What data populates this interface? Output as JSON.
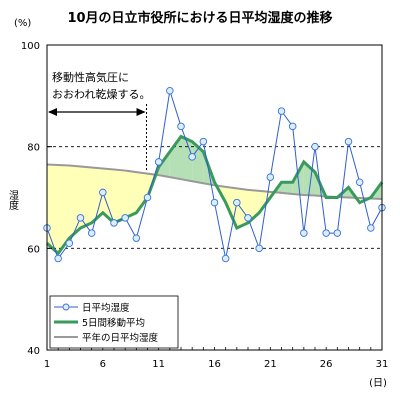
{
  "chart_data": {
    "type": "line",
    "title": "10月の日立市役所における日平均湿度の推移",
    "y_unit": "(%)",
    "y_label": "湿度",
    "x_unit": "(日)",
    "ylim": [
      40,
      100
    ],
    "xlim": [
      1,
      31
    ],
    "y_ticks": [
      40,
      60,
      80,
      100
    ],
    "x_ticks": [
      1,
      6,
      11,
      16,
      21,
      26,
      31
    ],
    "grid": "dashed at 60 and 80",
    "legend_position": "bottom-left",
    "annotation": {
      "text_line1": "移動性高気圧に",
      "text_line2": "おおわれ乾燥する。",
      "from_day": 1,
      "to_day": 10
    },
    "x": [
      1,
      2,
      3,
      4,
      5,
      6,
      7,
      8,
      9,
      10,
      11,
      12,
      13,
      14,
      15,
      16,
      17,
      18,
      19,
      20,
      21,
      22,
      23,
      24,
      25,
      26,
      27,
      28,
      29,
      30,
      31
    ],
    "series": [
      {
        "name": "日平均湿度",
        "color": "#2f5fd0",
        "values": [
          64,
          58,
          61,
          66,
          63,
          71,
          65,
          66,
          62,
          70,
          77,
          91,
          84,
          78,
          81,
          69,
          58,
          69,
          66,
          60,
          74,
          87,
          84,
          63,
          80,
          63,
          63,
          81,
          73,
          64,
          68
        ]
      },
      {
        "name": "5日間移動平均",
        "color": "#3a9a5e",
        "values": [
          61,
          59,
          62,
          64,
          65,
          67,
          65,
          66,
          67,
          70,
          76,
          79,
          82,
          81,
          79,
          73,
          69,
          64,
          65,
          67,
          70,
          73,
          73,
          77,
          75,
          70,
          70,
          72,
          69,
          70,
          73
        ]
      },
      {
        "name": "平年の日平均湿度",
        "color": "#999999",
        "values": [
          76.5,
          76.4,
          76.3,
          76.1,
          75.9,
          75.7,
          75.5,
          75.3,
          75,
          74.7,
          74.4,
          74,
          73.6,
          73.2,
          72.8,
          72.4,
          72.1,
          71.8,
          71.5,
          71.3,
          71.1,
          70.9,
          70.7,
          70.5,
          70.4,
          70.2,
          70.1,
          70,
          69.9,
          69.8,
          69.7
        ]
      }
    ],
    "fill_colors": {
      "below_normal": "#ffffb8",
      "above_normal": "#b5dfb5"
    }
  }
}
